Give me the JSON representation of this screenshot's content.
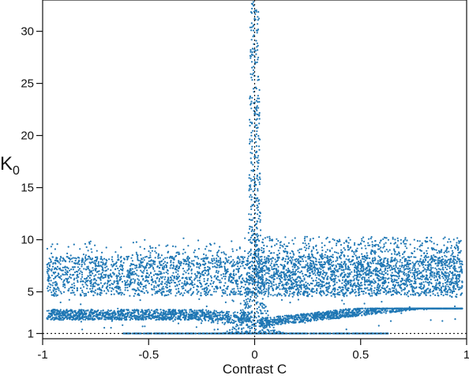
{
  "chart_data": {
    "type": "scatter",
    "title": "",
    "xlabel": "Contrast C",
    "ylabel": {
      "main": "K",
      "sub": "0"
    },
    "xlim": [
      -1,
      1
    ],
    "ylim": [
      0.5,
      33
    ],
    "xticks": [
      {
        "value": -1,
        "label": "-1"
      },
      {
        "value": -0.5,
        "label": "-0.5"
      },
      {
        "value": 0,
        "label": "0"
      },
      {
        "value": 0.5,
        "label": "0.5"
      },
      {
        "value": 1,
        "label": "1"
      }
    ],
    "yticks": [
      {
        "value": 1,
        "label": "1"
      },
      {
        "value": 5,
        "label": "5"
      },
      {
        "value": 10,
        "label": "10"
      },
      {
        "value": 15,
        "label": "15"
      },
      {
        "value": 20,
        "label": "20"
      },
      {
        "value": 25,
        "label": "25"
      },
      {
        "value": 30,
        "label": "30"
      }
    ],
    "reference_lines": [
      {
        "orientation": "horizontal",
        "value": 1,
        "style": "dotted"
      },
      {
        "orientation": "vertical",
        "value": 0,
        "style": "dotted"
      }
    ],
    "grid": false,
    "legend": "none",
    "series_color": "#1f77b4",
    "point_summary": [
      {
        "band": "K0 = 1 baseline",
        "x_range": [
          -0.62,
          0.63
        ],
        "y": 1
      },
      {
        "band": "lower branches",
        "x_range": [
          -0.98,
          0.98
        ],
        "y_range": [
          1.5,
          3.5
        ]
      },
      {
        "band": "upper cloud",
        "x_range": [
          -0.98,
          0.98
        ],
        "y_range": [
          4.5,
          10.3
        ]
      },
      {
        "band": "central spike",
        "x": 0,
        "y_range": [
          1,
          33
        ]
      }
    ]
  }
}
